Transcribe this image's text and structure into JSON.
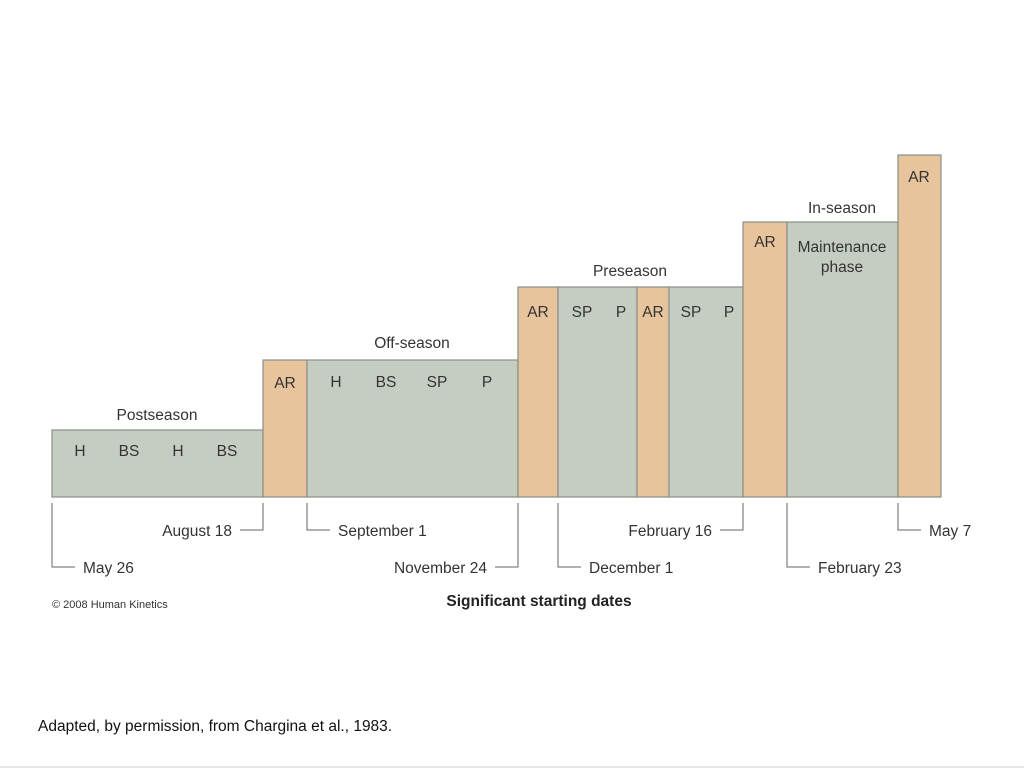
{
  "phases": {
    "postseason": "Postseason",
    "offseason": "Off-season",
    "preseason": "Preseason",
    "inseason": "In-season"
  },
  "blocks": {
    "ar": "AR",
    "h": "H",
    "bs": "BS",
    "sp": "SP",
    "p": "P",
    "maintenance_line1": "Maintenance",
    "maintenance_line2": "phase"
  },
  "dates": {
    "may26": "May 26",
    "aug18": "August 18",
    "sep1": "September 1",
    "nov24": "November 24",
    "dec1": "December 1",
    "feb16": "February 16",
    "feb23": "February 23",
    "may7": "May 7"
  },
  "axis_title": "Significant starting dates",
  "copyright": "© 2008 Human Kinetics",
  "caption": "Adapted, by permission, from Chargina et al., 1983.",
  "colors": {
    "training_block": "#c5ccc1",
    "active_rest_block": "#e8c49c"
  }
}
